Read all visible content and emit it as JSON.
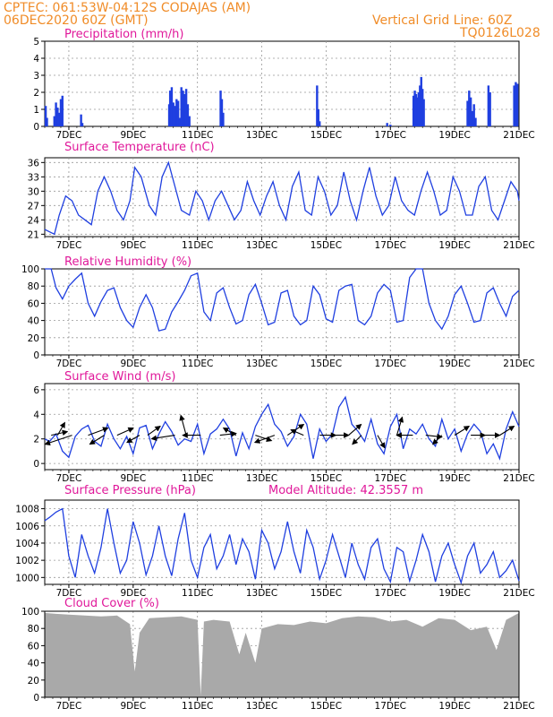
{
  "header": {
    "line1_left": "CPTEC:   061:53W-04:12S   CODAJAS (AM)",
    "line2_left": "06DEC2020 60Z (GMT)",
    "line2_right": "Vertical Grid Line: 60Z",
    "line3_right": "TQ0126L028"
  },
  "colors": {
    "line": "#1f3fe0",
    "bar": "#1f3fe0",
    "cloud": "#a9a9a9",
    "title": "#e0189a",
    "header": "#f08c28",
    "arrow": "#000000"
  },
  "x_ticks": [
    "7DEC",
    "9DEC",
    "11DEC",
    "13DEC",
    "15DEC",
    "17DEC",
    "19DEC",
    "21DEC"
  ],
  "x_range_days": [
    6.25,
    21.0
  ],
  "chart_data": [
    {
      "id": "precip",
      "type": "bar",
      "title": "Precipitation (mm/h)",
      "ylim": [
        0,
        5
      ],
      "yticks": [
        0,
        1,
        2,
        3,
        4,
        5
      ],
      "grid": true,
      "x": [
        6.28,
        6.32,
        6.55,
        6.6,
        6.65,
        6.7,
        6.75,
        6.8,
        7.38,
        7.42,
        10.12,
        10.15,
        10.2,
        10.25,
        10.3,
        10.35,
        10.4,
        10.45,
        10.5,
        10.55,
        10.6,
        10.65,
        10.7,
        10.75,
        11.72,
        11.76,
        11.8,
        14.72,
        14.76,
        14.8,
        16.9,
        17.0,
        17.72,
        17.76,
        17.8,
        17.84,
        17.88,
        17.92,
        17.96,
        18.0,
        18.04,
        19.4,
        19.45,
        19.5,
        19.55,
        19.6,
        19.65,
        20.05,
        20.1,
        20.85,
        20.9,
        20.95
      ],
      "values": [
        1.2,
        0.5,
        0.6,
        1.4,
        1.1,
        0.8,
        1.6,
        1.8,
        0.7,
        0.2,
        1.3,
        2.1,
        2.3,
        1.4,
        1.2,
        1.6,
        1.5,
        0.5,
        2.3,
        2.1,
        1.9,
        2.2,
        1.3,
        0.6,
        2.1,
        1.6,
        0.8,
        2.4,
        1.0,
        0.3,
        0.2,
        0.1,
        1.8,
        2.1,
        1.9,
        1.7,
        2.0,
        2.4,
        2.9,
        2.2,
        1.6,
        1.5,
        2.1,
        1.7,
        0.9,
        1.3,
        0.5,
        2.4,
        2.0,
        2.4,
        2.6,
        2.5
      ]
    },
    {
      "id": "temp",
      "type": "line",
      "title": "Surface Temperature (nC)",
      "ylim": [
        20.5,
        37
      ],
      "yticks": [
        21,
        24,
        27,
        30,
        33,
        36
      ],
      "grid": true,
      "x": [
        6.25,
        6.4,
        6.55,
        6.7,
        6.9,
        7.1,
        7.3,
        7.5,
        7.7,
        7.9,
        8.1,
        8.3,
        8.5,
        8.7,
        8.9,
        9.05,
        9.25,
        9.5,
        9.7,
        9.9,
        10.1,
        10.3,
        10.5,
        10.75,
        10.95,
        11.15,
        11.35,
        11.55,
        11.75,
        11.95,
        12.15,
        12.35,
        12.55,
        12.75,
        12.95,
        13.15,
        13.35,
        13.55,
        13.75,
        13.95,
        14.15,
        14.35,
        14.55,
        14.75,
        14.95,
        15.15,
        15.35,
        15.55,
        15.75,
        15.95,
        16.15,
        16.35,
        16.55,
        16.75,
        16.95,
        17.15,
        17.35,
        17.55,
        17.75,
        17.95,
        18.15,
        18.35,
        18.55,
        18.75,
        18.95,
        19.15,
        19.35,
        19.55,
        19.75,
        19.95,
        20.15,
        20.35,
        20.55,
        20.75,
        20.95,
        21.0
      ],
      "values": [
        22,
        21.5,
        21,
        25,
        29,
        28,
        25,
        24,
        23,
        30,
        33,
        30,
        26,
        24,
        28,
        35,
        33,
        27,
        25,
        33,
        36,
        31,
        26,
        25,
        30,
        28,
        24,
        28,
        30,
        27,
        24,
        26,
        32,
        28,
        25,
        29,
        32,
        27,
        24,
        31,
        34,
        26,
        25,
        33,
        30,
        25,
        27,
        34,
        28,
        24,
        30,
        35,
        29,
        25,
        27,
        33,
        28,
        26,
        25,
        30,
        34,
        30,
        25,
        26,
        33,
        30,
        25,
        25,
        31,
        33,
        26,
        24,
        28,
        32,
        30,
        28
      ]
    },
    {
      "id": "rh",
      "type": "line",
      "title": "Relative Humidity (%)",
      "ylim": [
        0,
        100
      ],
      "yticks": [
        0,
        20,
        40,
        60,
        80,
        100
      ],
      "grid": true,
      "x": [
        6.25,
        6.45,
        6.6,
        6.8,
        7.0,
        7.2,
        7.4,
        7.6,
        7.8,
        8.0,
        8.2,
        8.4,
        8.6,
        8.8,
        9.0,
        9.2,
        9.4,
        9.6,
        9.8,
        10.0,
        10.2,
        10.4,
        10.6,
        10.8,
        11.0,
        11.2,
        11.4,
        11.6,
        11.8,
        12.0,
        12.2,
        12.4,
        12.6,
        12.8,
        13.0,
        13.2,
        13.4,
        13.6,
        13.8,
        14.0,
        14.2,
        14.4,
        14.6,
        14.8,
        15.0,
        15.2,
        15.4,
        15.6,
        15.8,
        16.0,
        16.2,
        16.4,
        16.6,
        16.8,
        17.0,
        17.2,
        17.4,
        17.6,
        17.8,
        18.0,
        18.2,
        18.4,
        18.6,
        18.8,
        19.0,
        19.2,
        19.4,
        19.6,
        19.8,
        20.0,
        20.2,
        20.4,
        20.6,
        20.8,
        21.0
      ],
      "values": [
        100,
        100,
        78,
        65,
        80,
        88,
        95,
        60,
        45,
        62,
        75,
        78,
        55,
        40,
        32,
        55,
        70,
        55,
        28,
        30,
        50,
        62,
        75,
        92,
        95,
        50,
        40,
        72,
        78,
        55,
        36,
        40,
        70,
        82,
        60,
        35,
        38,
        72,
        75,
        45,
        35,
        40,
        80,
        70,
        42,
        38,
        75,
        80,
        82,
        40,
        35,
        45,
        72,
        82,
        75,
        38,
        40,
        90,
        100,
        100,
        60,
        40,
        30,
        45,
        70,
        80,
        60,
        38,
        40,
        72,
        78,
        60,
        45,
        68,
        75
      ]
    },
    {
      "id": "wind",
      "type": "line",
      "title": "Surface Wind (m/s)",
      "ylim": [
        -0.5,
        6.5
      ],
      "yticks": [
        0,
        2,
        4,
        6
      ],
      "grid": true,
      "x": [
        6.25,
        6.4,
        6.6,
        6.8,
        7.0,
        7.2,
        7.4,
        7.6,
        7.8,
        8.0,
        8.2,
        8.4,
        8.6,
        8.8,
        9.0,
        9.2,
        9.4,
        9.6,
        9.8,
        10.0,
        10.2,
        10.4,
        10.6,
        10.8,
        11.0,
        11.2,
        11.4,
        11.6,
        11.8,
        12.0,
        12.2,
        12.4,
        12.6,
        12.8,
        13.0,
        13.2,
        13.4,
        13.6,
        13.8,
        14.0,
        14.2,
        14.4,
        14.6,
        14.8,
        15.0,
        15.2,
        15.4,
        15.6,
        15.8,
        16.0,
        16.2,
        16.4,
        16.6,
        16.8,
        17.0,
        17.2,
        17.4,
        17.6,
        17.8,
        18.0,
        18.2,
        18.4,
        18.6,
        18.8,
        19.0,
        19.2,
        19.4,
        19.6,
        19.8,
        20.0,
        20.2,
        20.4,
        20.6,
        20.8,
        21.0
      ],
      "values": [
        2.0,
        1.8,
        2.4,
        1.0,
        0.5,
        2.2,
        2.8,
        3.1,
        1.8,
        1.4,
        3.2,
        2.0,
        1.2,
        2.2,
        0.8,
        2.9,
        3.1,
        1.2,
        2.4,
        3.4,
        2.6,
        1.5,
        2.0,
        1.8,
        3.2,
        0.8,
        2.4,
        2.8,
        3.6,
        2.8,
        0.6,
        2.5,
        1.2,
        3.0,
        4.0,
        4.8,
        3.2,
        2.6,
        1.4,
        2.2,
        4.0,
        3.2,
        0.4,
        2.8,
        1.8,
        2.4,
        4.6,
        5.4,
        3.2,
        2.6,
        1.8,
        3.6,
        1.6,
        0.8,
        3.0,
        4.0,
        1.2,
        2.8,
        2.4,
        3.2,
        2.0,
        1.4,
        3.6,
        2.0,
        2.8,
        1.0,
        2.4,
        3.2,
        2.6,
        0.8,
        1.6,
        0.4,
        2.8,
        4.2,
        3.0
      ],
      "vectors": [
        {
          "x": 6.45,
          "dx": 18,
          "dy": -4
        },
        {
          "x": 6.65,
          "dx": 8,
          "dy": -14
        },
        {
          "x": 7.1,
          "dx": -30,
          "dy": 10
        },
        {
          "x": 7.6,
          "dx": 22,
          "dy": -8
        },
        {
          "x": 8.1,
          "dx": -16,
          "dy": 10
        },
        {
          "x": 8.5,
          "dx": 18,
          "dy": -8
        },
        {
          "x": 9.2,
          "dx": -14,
          "dy": 8
        },
        {
          "x": 9.45,
          "dx": 14,
          "dy": -10
        },
        {
          "x": 10.3,
          "dx": -26,
          "dy": 4
        },
        {
          "x": 10.65,
          "dx": -6,
          "dy": -22
        },
        {
          "x": 11.1,
          "dx": -20,
          "dy": 0
        },
        {
          "x": 11.7,
          "dx": 18,
          "dy": -2
        },
        {
          "x": 12.2,
          "dx": -14,
          "dy": -8
        },
        {
          "x": 12.8,
          "dx": 18,
          "dy": 6
        },
        {
          "x": 13.4,
          "dx": -22,
          "dy": 8
        },
        {
          "x": 13.8,
          "dx": 18,
          "dy": -12
        },
        {
          "x": 14.3,
          "dx": -14,
          "dy": -6
        },
        {
          "x": 14.8,
          "dx": 18,
          "dy": 0
        },
        {
          "x": 15.2,
          "dx": 18,
          "dy": 0
        },
        {
          "x": 15.7,
          "dx": 14,
          "dy": -12
        },
        {
          "x": 16.1,
          "dx": -10,
          "dy": 10
        },
        {
          "x": 16.6,
          "dx": 8,
          "dy": 14
        },
        {
          "x": 17.2,
          "dx": 6,
          "dy": -20
        },
        {
          "x": 17.7,
          "dx": -18,
          "dy": 0
        },
        {
          "x": 18.1,
          "dx": 18,
          "dy": 2
        },
        {
          "x": 18.6,
          "dx": -10,
          "dy": 10
        },
        {
          "x": 19.0,
          "dx": 16,
          "dy": -10
        },
        {
          "x": 19.5,
          "dx": 16,
          "dy": 0
        },
        {
          "x": 19.9,
          "dx": 18,
          "dy": 0
        },
        {
          "x": 20.4,
          "dx": 16,
          "dy": -10
        }
      ]
    },
    {
      "id": "pressure",
      "type": "line",
      "title": "Surface Pressure (hPa)",
      "subtitle": "Model Altitude: 42.3557 m",
      "ylim": [
        999.2,
        1009
      ],
      "yticks": [
        1000,
        1002,
        1004,
        1006,
        1008
      ],
      "grid": true,
      "x": [
        6.25,
        6.4,
        6.6,
        6.8,
        7.0,
        7.2,
        7.4,
        7.6,
        7.8,
        8.0,
        8.2,
        8.4,
        8.6,
        8.8,
        9.0,
        9.2,
        9.4,
        9.6,
        9.8,
        10.0,
        10.2,
        10.4,
        10.6,
        10.8,
        11.0,
        11.2,
        11.4,
        11.6,
        11.8,
        12.0,
        12.2,
        12.4,
        12.6,
        12.8,
        13.0,
        13.2,
        13.4,
        13.6,
        13.8,
        14.0,
        14.2,
        14.4,
        14.6,
        14.8,
        15.0,
        15.2,
        15.4,
        15.6,
        15.8,
        16.0,
        16.2,
        16.4,
        16.6,
        16.8,
        17.0,
        17.2,
        17.4,
        17.6,
        17.8,
        18.0,
        18.2,
        18.4,
        18.6,
        18.8,
        19.0,
        19.2,
        19.4,
        19.6,
        19.8,
        20.0,
        20.2,
        20.4,
        20.6,
        20.8,
        21.0
      ],
      "values": [
        1006.6,
        1007.0,
        1007.6,
        1008.0,
        1002.5,
        1000.0,
        1005.0,
        1002.5,
        1000.5,
        1003.5,
        1008.0,
        1004.0,
        1000.5,
        1002.0,
        1006.5,
        1004.0,
        1000.3,
        1002.5,
        1006.0,
        1002.5,
        1000.2,
        1004.5,
        1007.5,
        1002.0,
        1000.0,
        1003.5,
        1005.0,
        1001.0,
        1002.5,
        1005.0,
        1001.5,
        1004.5,
        1003.0,
        999.8,
        1005.5,
        1004.0,
        1001.0,
        1003.0,
        1006.5,
        1003.0,
        1000.5,
        1005.5,
        1003.5,
        999.8,
        1002.0,
        1005.0,
        1002.5,
        1000.0,
        1004.0,
        1001.5,
        999.8,
        1003.5,
        1004.5,
        1001.0,
        999.5,
        1003.5,
        1003.0,
        999.6,
        1002.0,
        1005.0,
        1003.0,
        999.5,
        1002.5,
        1004.0,
        1001.5,
        999.4,
        1002.5,
        1004.0,
        1000.5,
        1001.5,
        1003.0,
        1000.0,
        1000.8,
        1002.0,
        999.6
      ]
    },
    {
      "id": "cloud",
      "type": "area",
      "title": "Cloud Cover (%)",
      "ylim": [
        0,
        100
      ],
      "yticks": [
        0,
        20,
        40,
        60,
        80,
        100
      ],
      "grid": true,
      "x": [
        6.25,
        6.6,
        7.0,
        7.5,
        8.0,
        8.5,
        8.9,
        9.05,
        9.2,
        9.5,
        10.0,
        10.5,
        11.0,
        11.1,
        11.2,
        11.5,
        12.0,
        12.3,
        12.5,
        12.8,
        13.0,
        13.5,
        14.0,
        14.5,
        15.0,
        15.5,
        16.0,
        16.5,
        17.0,
        17.5,
        18.0,
        18.5,
        19.0,
        19.5,
        20.0,
        20.3,
        20.6,
        21.0
      ],
      "values": [
        98,
        97,
        96,
        95,
        94,
        95,
        85,
        30,
        75,
        92,
        93,
        94,
        90,
        2,
        88,
        90,
        88,
        50,
        75,
        40,
        80,
        85,
        84,
        88,
        86,
        92,
        94,
        93,
        88,
        90,
        82,
        92,
        90,
        78,
        82,
        55,
        90,
        98
      ]
    }
  ]
}
